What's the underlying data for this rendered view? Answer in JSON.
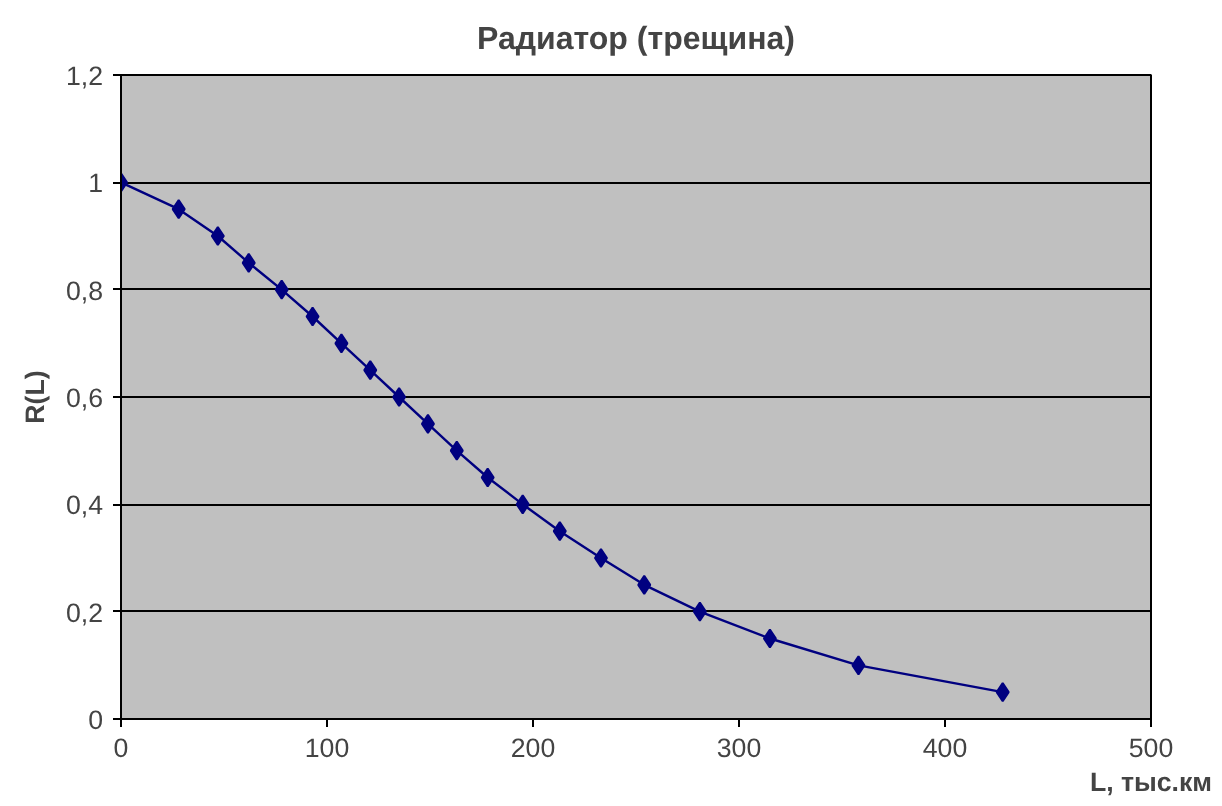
{
  "chart_data": {
    "type": "line",
    "title": "Радиатор (трещина)",
    "xlabel": "L, тыс.км",
    "ylabel": "R(L)",
    "x": [
      0,
      28,
      47,
      62,
      78,
      93,
      107,
      121,
      135,
      149,
      163,
      178,
      195,
      213,
      233,
      254,
      281,
      315,
      358,
      428
    ],
    "series": [
      {
        "color": "#000080",
        "values": [
          1,
          0.95,
          0.9,
          0.85,
          0.8,
          0.75,
          0.7,
          0.65,
          0.6,
          0.55,
          0.5,
          0.45,
          0.4,
          0.35,
          0.3,
          0.25,
          0.2,
          0.15,
          0.1,
          0.05
        ]
      }
    ],
    "xlim": [
      0,
      500
    ],
    "ylim": [
      0,
      1.2
    ],
    "xticks": [
      0,
      100,
      200,
      300,
      400,
      500
    ],
    "yticks": [
      0,
      {
        "value": 0.2,
        "label": "0,2"
      },
      {
        "value": 0.4,
        "label": "0,4"
      },
      {
        "value": 0.6,
        "label": "0,6"
      },
      {
        "value": 0.8,
        "label": "0,8"
      },
      1,
      {
        "value": 1.2,
        "label": "1,2"
      }
    ],
    "grid": "y",
    "marker": "diamond",
    "line_style": "solid"
  }
}
